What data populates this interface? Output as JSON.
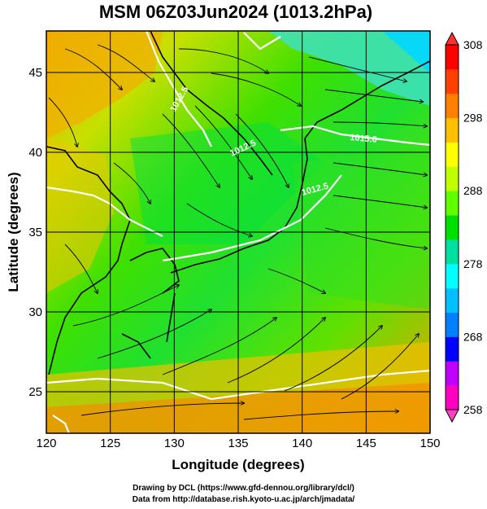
{
  "title": "MSM 06Z03Jun2024 (1013.2hPa)",
  "map": {
    "lon_range": [
      120,
      150
    ],
    "lat_range": [
      22.4,
      47.6
    ],
    "xlabel": "Longitude (degrees)",
    "ylabel": "Latitude  (degrees)",
    "x_ticks": [
      "120",
      "125",
      "130",
      "135",
      "140",
      "145",
      "150"
    ],
    "y_ticks": [
      "25",
      "30",
      "35",
      "40",
      "45"
    ],
    "grid": "on",
    "contours": [
      "1012.5",
      "1012.5",
      "1015.0",
      "1012.5"
    ]
  },
  "colorbar": {
    "range": [
      258,
      308
    ],
    "tick_labels": [
      "308",
      "298",
      "288",
      "278",
      "268",
      "258"
    ],
    "colors": [
      "#ff00c0",
      "#c000ff",
      "#0000ff",
      "#0080ff",
      "#00c0ff",
      "#00ffff",
      "#00e0a0",
      "#00e000",
      "#60ff00",
      "#c0ff00",
      "#ffff00",
      "#ffc000",
      "#ff8000",
      "#ff4000",
      "#ff0000"
    ]
  },
  "credits": {
    "line1": "Drawing by DCL (https://www.gfd-dennou.org/library/dcl/)",
    "line2": "Data from http://database.rish.kyoto-u.ac.jp/arch/jmadata/"
  }
}
